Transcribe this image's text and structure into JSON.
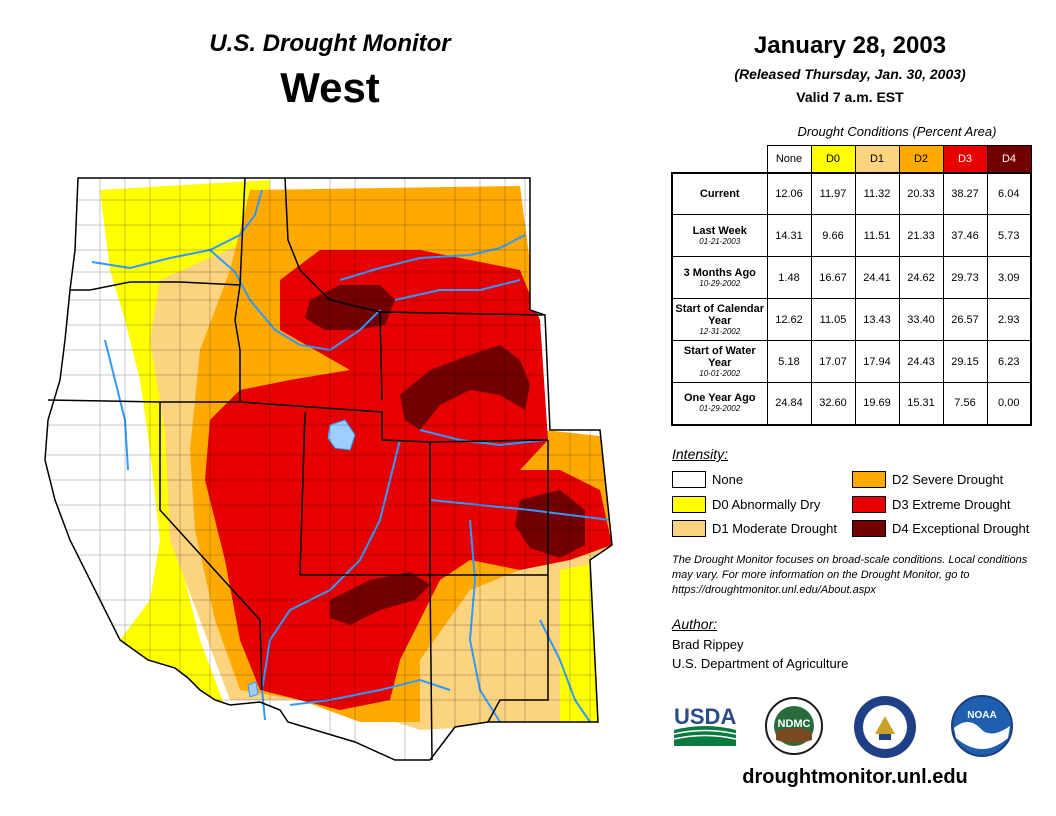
{
  "header": {
    "title": "U.S. Drought Monitor",
    "region": "West",
    "date": "January 28, 2003",
    "released": "(Released Thursday, Jan. 30, 2003)",
    "valid": "Valid 7 a.m. EST"
  },
  "table": {
    "caption": "Drought Conditions (Percent Area)",
    "categories": [
      {
        "label": "None",
        "color": "#ffffff"
      },
      {
        "label": "D0",
        "color": "#ffff00"
      },
      {
        "label": "D1",
        "color": "#fcd37f"
      },
      {
        "label": "D2",
        "color": "#ffaa00"
      },
      {
        "label": "D3",
        "color": "#e60000"
      },
      {
        "label": "D4",
        "color": "#730000"
      }
    ],
    "rows": [
      {
        "label": "Current",
        "sub": "",
        "values": [
          "12.06",
          "11.97",
          "11.32",
          "20.33",
          "38.27",
          "6.04"
        ]
      },
      {
        "label": "Last Week",
        "sub": "01-21-2003",
        "values": [
          "14.31",
          "9.66",
          "11.51",
          "21.33",
          "37.46",
          "5.73"
        ]
      },
      {
        "label": "3 Months Ago",
        "sub": "10-29-2002",
        "values": [
          "1.48",
          "16.67",
          "24.41",
          "24.62",
          "29.73",
          "3.09"
        ]
      },
      {
        "label": "Start of Calendar Year",
        "sub": "12-31-2002",
        "values": [
          "12.62",
          "11.05",
          "13.43",
          "33.40",
          "26.57",
          "2.93"
        ]
      },
      {
        "label": "Start of Water Year",
        "sub": "10-01-2002",
        "values": [
          "5.18",
          "17.07",
          "17.94",
          "24.43",
          "29.15",
          "6.23"
        ]
      },
      {
        "label": "One Year Ago",
        "sub": "01-29-2002",
        "values": [
          "24.84",
          "32.60",
          "19.69",
          "15.31",
          "7.56",
          "0.00"
        ]
      }
    ]
  },
  "legend": {
    "title": "Intensity:",
    "items": [
      {
        "label": "None",
        "color": "#ffffff"
      },
      {
        "label": "D0 Abnormally Dry",
        "color": "#ffff00"
      },
      {
        "label": "D1 Moderate Drought",
        "color": "#fcd37f"
      },
      {
        "label": "D2 Severe Drought",
        "color": "#ffaa00"
      },
      {
        "label": "D3 Extreme Drought",
        "color": "#e60000"
      },
      {
        "label": "D4 Exceptional Drought",
        "color": "#730000"
      }
    ]
  },
  "note": "The Drought Monitor focuses on broad-scale conditions. Local conditions may vary. For more information on the Drought Monitor, go to https://droughtmonitor.unl.edu/About.aspx",
  "author": {
    "title": "Author:",
    "name": "Brad Rippey",
    "org": "U.S. Department of Agriculture"
  },
  "logos": {
    "usda": "USDA",
    "ndmc": "NDMC",
    "noaa": "NOAA"
  },
  "website": "droughtmonitor.unl.edu",
  "colors": {
    "none": "#ffffff",
    "d0": "#ffff00",
    "d1": "#fcd37f",
    "d2": "#ffaa00",
    "d3": "#e60000",
    "d4": "#730000",
    "water": "#3399ff"
  }
}
